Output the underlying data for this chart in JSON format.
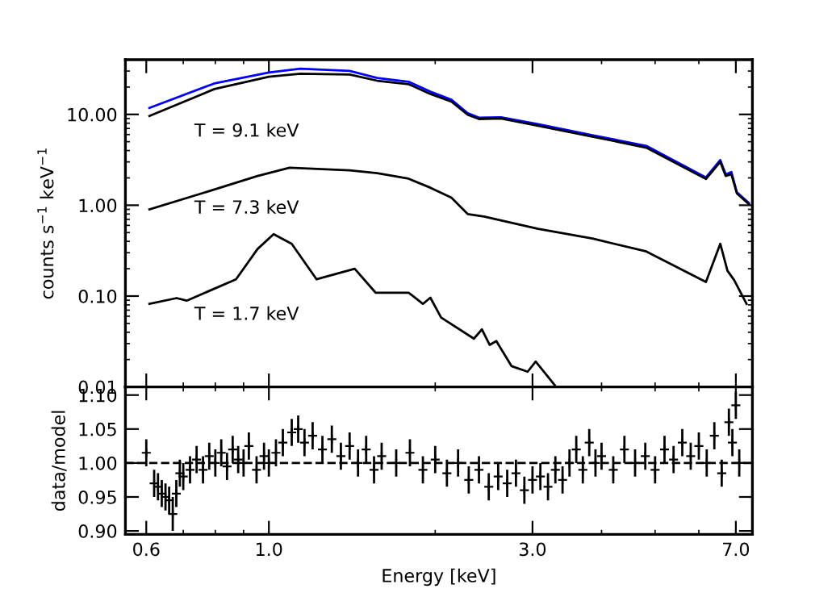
{
  "chart_data": [
    {
      "type": "line",
      "log": "xy",
      "ylabel": "counts s$^{−1}$ keV$^{−1}$",
      "xlim": [
        0.55,
        7.5
      ],
      "ylim": [
        0.01,
        40
      ],
      "xticks": [
        {
          "value": 0.6,
          "label": null
        },
        {
          "value": 1.0,
          "label": null
        },
        {
          "value": 3.0,
          "label": null
        },
        {
          "value": 7.0,
          "label": null
        }
      ],
      "yticks": [
        {
          "value": 0.01,
          "label": "0.01"
        },
        {
          "value": 0.1,
          "label": "0.10"
        },
        {
          "value": 1,
          "label": "1.00"
        },
        {
          "value": 10,
          "label": "10.00"
        }
      ],
      "tick_labels": "y",
      "grid": false,
      "legend": false,
      "series": [
        {
          "color": "#0000ff",
          "x": [
            0.608,
            0.797,
            1.0,
            1.14,
            1.4,
            1.57,
            1.79,
            1.96,
            2.14,
            2.29,
            2.4,
            2.63,
            3.07,
            3.85,
            4.82,
            6.18,
            6.56,
            6.71,
            6.87,
            7.03,
            7.39
          ],
          "values": [
            11.8,
            21.9,
            28.9,
            31.8,
            30.1,
            25.2,
            22.9,
            17.8,
            14.5,
            10.3,
            9.2,
            9.3,
            7.8,
            5.9,
            4.5,
            2.02,
            3.14,
            2.19,
            2.32,
            1.39,
            1.06
          ]
        },
        {
          "color": "#000000",
          "x": [
            0.608,
            0.797,
            1.0,
            1.14,
            1.4,
            1.57,
            1.79,
            1.96,
            2.14,
            2.29,
            2.4,
            2.63,
            3.07,
            3.85,
            4.82,
            6.18,
            6.56,
            6.71,
            6.87,
            7.03,
            7.39
          ],
          "values": [
            9.6,
            19,
            26,
            28,
            27.5,
            23.5,
            21.5,
            16.8,
            13.8,
            9.9,
            8.9,
            9.0,
            7.5,
            5.7,
            4.3,
            1.95,
            3.0,
            2.1,
            2.2,
            1.35,
            1.03
          ]
        },
        {
          "color": "#000000",
          "x": [
            0.608,
            0.797,
            0.954,
            1.09,
            1.4,
            1.57,
            1.79,
            1.96,
            2.14,
            2.29,
            2.45,
            3.07,
            3.85,
            4.82,
            6.18,
            6.56,
            6.76,
            6.95,
            7.32
          ],
          "values": [
            0.9,
            1.49,
            2.1,
            2.59,
            2.42,
            2.25,
            1.96,
            1.56,
            1.21,
            0.8,
            0.75,
            0.55,
            0.43,
            0.31,
            0.143,
            0.376,
            0.19,
            0.15,
            0.082
          ]
        },
        {
          "color": "#000000",
          "x": [
            0.608,
            0.681,
            0.71,
            0.872,
            0.954,
            1.02,
            1.1,
            1.22,
            1.43,
            1.56,
            1.79,
            1.9,
            1.96,
            2.05,
            2.35,
            2.43,
            2.51,
            2.58,
            2.75,
            2.94,
            3.04,
            3.29
          ],
          "values": [
            0.082,
            0.095,
            0.089,
            0.153,
            0.33,
            0.48,
            0.376,
            0.153,
            0.2,
            0.109,
            0.109,
            0.082,
            0.096,
            0.058,
            0.034,
            0.043,
            0.029,
            0.032,
            0.0169,
            0.0147,
            0.019,
            0.0105
          ]
        }
      ],
      "annotations": [
        "T = 9.1 keV",
        "T = 7.3 keV",
        "T = 1.7 keV"
      ]
    },
    {
      "type": "scatter",
      "log": "x",
      "marker": "cross",
      "xlabel": "Energy [keV]",
      "ylabel": "data/model",
      "xlim": [
        0.55,
        7.5
      ],
      "ylim": [
        0.895,
        1.112
      ],
      "xticks": [
        {
          "value": 0.6,
          "label": "0.6"
        },
        {
          "value": 1.0,
          "label": "1.0"
        },
        {
          "value": 3.0,
          "label": "3.0"
        },
        {
          "value": 7.0,
          "label": "7.0"
        }
      ],
      "yticks": [
        {
          "value": 0.9,
          "label": "0.90"
        },
        {
          "value": 0.95,
          "label": "0.95"
        },
        {
          "value": 1.0,
          "label": "1.00"
        },
        {
          "value": 1.05,
          "label": "1.05"
        },
        {
          "value": 1.1,
          "label": "1.10"
        }
      ],
      "grid": false,
      "legend": false,
      "ref_lines": [
        {
          "axis": "y",
          "value": 1.0,
          "line_style": "dashed",
          "color": "#000000"
        }
      ],
      "series": [
        {
          "color": "#000000",
          "x": [
            0.6,
            0.62,
            0.63,
            0.64,
            0.65,
            0.66,
            0.67,
            0.68,
            0.69,
            0.7,
            0.72,
            0.74,
            0.76,
            0.78,
            0.8,
            0.82,
            0.84,
            0.86,
            0.88,
            0.9,
            0.92,
            0.95,
            0.98,
            1.0,
            1.03,
            1.06,
            1.1,
            1.13,
            1.16,
            1.2,
            1.25,
            1.3,
            1.35,
            1.4,
            1.45,
            1.5,
            1.55,
            1.6,
            1.7,
            1.8,
            1.9,
            2.0,
            2.1,
            2.2,
            2.3,
            2.4,
            2.5,
            2.6,
            2.7,
            2.8,
            2.9,
            3.0,
            3.1,
            3.2,
            3.3,
            3.4,
            3.5,
            3.6,
            3.7,
            3.8,
            3.9,
            4.0,
            4.2,
            4.4,
            4.6,
            4.8,
            5.0,
            5.2,
            5.4,
            5.6,
            5.8,
            6.0,
            6.2,
            6.4,
            6.6,
            6.8,
            6.9,
            7.0,
            7.1
          ],
          "values": [
            1.015,
            0.97,
            0.965,
            0.955,
            0.95,
            0.945,
            0.925,
            0.955,
            0.985,
            0.98,
            0.99,
            1.005,
            0.99,
            1.01,
            1.0,
            1.015,
            0.995,
            1.02,
            1.005,
            1.0,
            1.025,
            0.99,
            1.01,
            1.0,
            1.015,
            1.03,
            1.045,
            1.05,
            1.03,
            1.04,
            1.02,
            1.035,
            1.01,
            1.025,
            1.0,
            1.02,
            0.99,
            1.01,
            1.0,
            1.015,
            0.99,
            1.005,
            0.985,
            1.0,
            0.975,
            0.99,
            0.965,
            0.98,
            0.97,
            0.985,
            0.96,
            0.975,
            0.98,
            0.965,
            0.99,
            0.975,
            1.0,
            1.02,
            0.99,
            1.03,
            1.0,
            1.01,
            0.99,
            1.02,
            1.0,
            1.01,
            0.99,
            1.02,
            1.005,
            1.03,
            1.01,
            1.025,
            1.0,
            1.04,
            0.985,
            1.06,
            1.03,
            1.085,
            1.0
          ],
          "errors": [
            0.02,
            0.02,
            0.02,
            0.02,
            0.02,
            0.02,
            0.025,
            0.02,
            0.02,
            0.02,
            0.02,
            0.02,
            0.02,
            0.02,
            0.02,
            0.02,
            0.02,
            0.02,
            0.02,
            0.02,
            0.02,
            0.02,
            0.02,
            0.02,
            0.02,
            0.02,
            0.02,
            0.02,
            0.02,
            0.02,
            0.02,
            0.02,
            0.02,
            0.02,
            0.02,
            0.02,
            0.02,
            0.02,
            0.02,
            0.02,
            0.02,
            0.02,
            0.02,
            0.02,
            0.02,
            0.02,
            0.02,
            0.02,
            0.02,
            0.02,
            0.02,
            0.02,
            0.02,
            0.02,
            0.02,
            0.02,
            0.02,
            0.02,
            0.02,
            0.02,
            0.02,
            0.02,
            0.02,
            0.02,
            0.02,
            0.02,
            0.02,
            0.02,
            0.02,
            0.02,
            0.02,
            0.02,
            0.02,
            0.02,
            0.02,
            0.02,
            0.02,
            0.02,
            0.02
          ]
        }
      ]
    }
  ]
}
